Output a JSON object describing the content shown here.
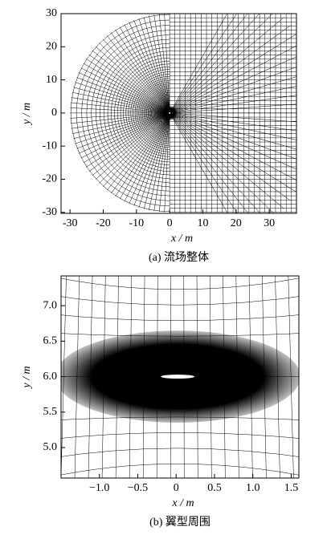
{
  "figures": [
    {
      "xlabel": "x / m",
      "ylabel": "y / m",
      "caption": "(a) 流场整体",
      "xlim": [
        -32.7,
        38.2
      ],
      "ylim": [
        -30.3,
        30
      ],
      "xticks": [
        -30,
        -20,
        -10,
        0,
        10,
        20,
        30
      ],
      "yticks": [
        -30,
        -20,
        -10,
        0,
        10,
        20,
        30
      ]
    },
    {
      "xlabel": "x / m",
      "ylabel": "y / m",
      "caption": "(b) 翼型周围",
      "xlim": [
        -1.5,
        1.6
      ],
      "ylim": [
        4.57,
        7.42
      ],
      "xticks": [
        {
          "value": -1,
          "label": "−1.0"
        },
        {
          "value": -0.5,
          "label": "−0.5"
        },
        0,
        0.5,
        {
          "value": 1,
          "label": "1.0"
        },
        1.5
      ],
      "yticks": [
        {
          "value": 5,
          "label": "5.0"
        },
        5.5,
        {
          "value": 6,
          "label": "6.0"
        },
        6.5,
        {
          "value": 7,
          "label": "7.0"
        }
      ]
    }
  ]
}
